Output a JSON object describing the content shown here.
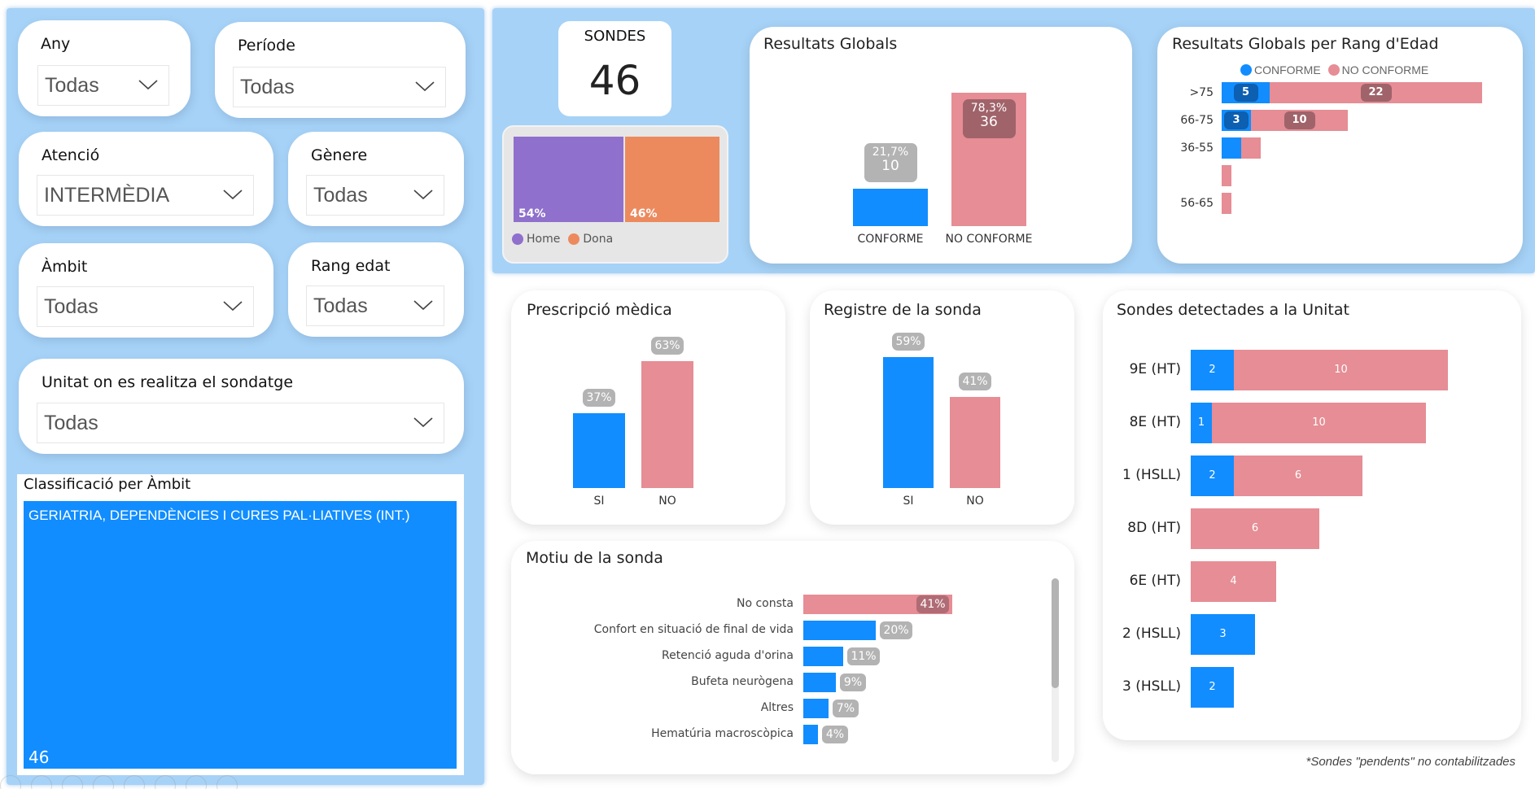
{
  "colors": {
    "panel_bg": "#a6d2f7",
    "conforme": "#118dff",
    "no_conforme": "#e68d95",
    "home": "#8f70cc",
    "dona": "#ec8a5e",
    "label_pill": "#b3b3b3",
    "dark_pill_red": "#a0636a",
    "dark_pill_blue": "#0c5fb1"
  },
  "filters": [
    {
      "label": "Any",
      "value": "Todas"
    },
    {
      "label": "Període",
      "value": "Todas"
    },
    {
      "label": "Atenció",
      "value": "INTERMÈDIA"
    },
    {
      "label": "Gènere",
      "value": "Todas"
    },
    {
      "label": "Àmbit",
      "value": "Todas"
    },
    {
      "label": "Rang edat",
      "value": "Todas"
    },
    {
      "label": "Unitat on es realitza el sondatge",
      "value": "Todas"
    }
  ],
  "classificacio": {
    "title": "Classificació per Àmbit",
    "category": "GERIATRIA, DEPENDÈNCIES I CURES PAL·LIATIVES (INT.)",
    "value": "46"
  },
  "kpi": {
    "label": "SONDES",
    "value": "46"
  },
  "gender": {
    "items": [
      {
        "name": "Home",
        "pct": 54,
        "label": "54%"
      },
      {
        "name": "Dona",
        "pct": 46,
        "label": "46%"
      }
    ]
  },
  "footnote": "*Sondes \"pendents\" no contabilitzades",
  "chart_data": [
    {
      "id": "resultats_globals",
      "type": "bar",
      "title": "Resultats Globals",
      "categories": [
        "CONFORME",
        "NO CONFORME"
      ],
      "values": [
        10,
        36
      ],
      "percent_labels": [
        "21,7%",
        "78,3%"
      ],
      "value_labels": [
        "10",
        "36"
      ],
      "ylim": [
        0,
        36
      ]
    },
    {
      "id": "rang_edat",
      "type": "bar",
      "orientation": "horizontal",
      "stacked": true,
      "title": "Resultats Globals per Rang d'Edad",
      "legend": [
        "CONFORME",
        "NO CONFORME"
      ],
      "legend_position": "top-center",
      "categories": [
        ">75",
        "66-75",
        "36-55",
        "",
        "56-65"
      ],
      "series": [
        {
          "name": "CONFORME",
          "values": [
            5,
            3,
            2,
            0,
            0
          ],
          "labels": [
            "5",
            "3",
            "",
            "",
            ""
          ]
        },
        {
          "name": "NO CONFORME",
          "values": [
            22,
            10,
            2,
            1,
            1
          ],
          "labels": [
            "22",
            "10",
            "",
            "",
            ""
          ]
        }
      ],
      "xlim": [
        0,
        27
      ]
    },
    {
      "id": "prescripcio",
      "type": "bar",
      "title": "Prescripció mèdica",
      "categories": [
        "SI",
        "NO"
      ],
      "values": [
        37,
        63
      ],
      "value_labels": [
        "37%",
        "63%"
      ],
      "ylim": [
        0,
        63
      ]
    },
    {
      "id": "registre",
      "type": "bar",
      "title": "Registre de la sonda",
      "categories": [
        "SI",
        "NO"
      ],
      "values": [
        59,
        41
      ],
      "value_labels": [
        "59%",
        "41%"
      ],
      "ylim": [
        0,
        59
      ]
    },
    {
      "id": "motiu",
      "type": "bar",
      "orientation": "horizontal",
      "title": "Motiu de la sonda",
      "categories": [
        "No consta",
        "Confort en situació de final de vida",
        "Retenció aguda d'orina",
        "Bufeta neurògena",
        "Altres",
        "Hematúria macroscòpica"
      ],
      "values": [
        41,
        20,
        11,
        9,
        7,
        4
      ],
      "value_labels": [
        "41%",
        "20%",
        "11%",
        "9%",
        "7%",
        "4%"
      ],
      "xlim": [
        0,
        41
      ]
    },
    {
      "id": "unitat",
      "type": "bar",
      "orientation": "horizontal",
      "stacked": true,
      "title": "Sondes detectades a la Unitat",
      "categories": [
        "9E (HT)",
        "8E (HT)",
        "1 (HSLL)",
        "8D (HT)",
        "6E (HT)",
        "2 (HSLL)",
        "3 (HSLL)"
      ],
      "series": [
        {
          "name": "CONFORME",
          "values": [
            2,
            1,
            2,
            0,
            0,
            3,
            2
          ]
        },
        {
          "name": "NO CONFORME",
          "values": [
            10,
            10,
            6,
            6,
            4,
            0,
            0
          ]
        }
      ],
      "xlim": [
        0,
        12
      ]
    }
  ]
}
